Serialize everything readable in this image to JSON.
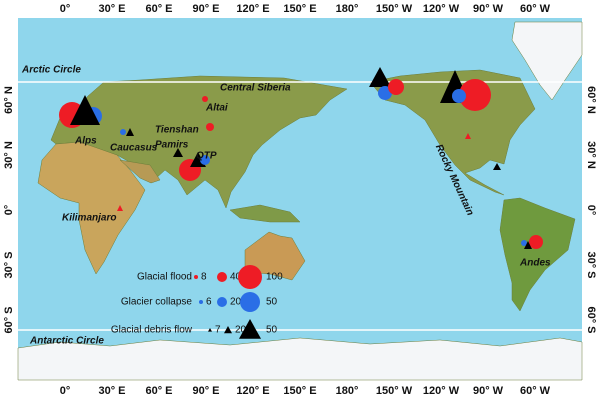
{
  "map": {
    "lon_labels": [
      "0°",
      "30° E",
      "60° E",
      "90° E",
      "120° E",
      "150° E",
      "180°",
      "150° W",
      "120° W",
      "90° W",
      "60° W"
    ],
    "lat_labels": [
      "60° N",
      "30° N",
      "0°",
      "30° S",
      "60° S"
    ],
    "arctic_circle": "Arctic Circle",
    "antarctic_circle": "Antarctic Circle",
    "regions": [
      "Central Siberia",
      "Altai",
      "Tienshan",
      "Pamirs",
      "Alps",
      "Caucasus",
      "QTP",
      "Kilimanjaro",
      "Rocky Mountain",
      "Andes"
    ]
  },
  "legend": {
    "rows": [
      {
        "label": "Glacial flood",
        "sizes": [
          8,
          40,
          100
        ]
      },
      {
        "label": "Glacier collapse",
        "sizes": [
          6,
          20,
          50
        ]
      },
      {
        "label": "Glacial  debris flow",
        "sizes": [
          7,
          20,
          50
        ]
      }
    ]
  }
}
